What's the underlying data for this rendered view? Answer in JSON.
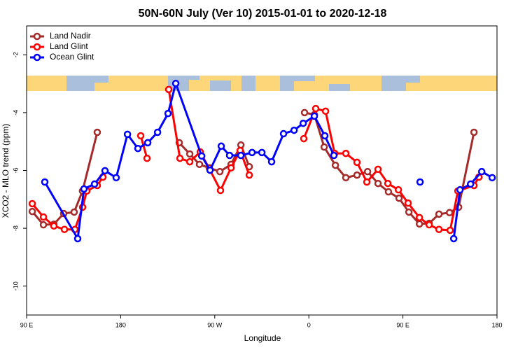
{
  "chart_data": {
    "type": "line",
    "title": "50N-60N July (Ver 10)   2015-01-01 to 2020-12-18",
    "x_label": "Longitude",
    "y_label": "XCO2 - MLO trend (ppm)",
    "xlim": [
      90,
      540
    ],
    "ylim": [
      -11,
      -1
    ],
    "xticks": [
      {
        "value": 90,
        "label": "90 E"
      },
      180,
      {
        "value": 270,
        "label": "90 W"
      },
      {
        "value": 360,
        "label": "0"
      },
      {
        "value": 450,
        "label": "90 E"
      },
      {
        "value": 540,
        "label": "180"
      }
    ],
    "yticks": [
      -10,
      -8,
      -6,
      -4,
      -2
    ],
    "legend": "top-left",
    "series": [
      {
        "name": "Land Nadir",
        "color": "#a52a2a",
        "x": [
          95.4,
          106.1,
          116.1,
          125.5,
          135.5,
          143.5,
          157.6,
          null,
          236.0,
          246.1,
          255.4,
          264.8,
          274.9,
          285.6,
          295.0,
          303.0,
          null,
          355.9,
          365.3,
          374.7,
          385.4,
          395.4,
          406.1,
          416.2,
          426.2,
          436.2,
          446.3,
          455.7,
          465.8,
          475.1,
          484.5,
          494.6,
          503.3,
          518.0
        ],
        "values": [
          -7.42,
          -7.88,
          -7.86,
          -7.49,
          -7.44,
          -6.71,
          -4.68,
          null,
          -5.04,
          -5.43,
          -5.79,
          -5.91,
          -6.04,
          -5.79,
          -5.12,
          -5.87,
          null,
          -4.0,
          -4.07,
          -5.19,
          -5.82,
          -6.25,
          -6.16,
          -6.04,
          -6.45,
          -6.74,
          -6.96,
          -7.44,
          -7.85,
          -7.83,
          -7.51,
          -7.46,
          -7.27,
          -4.68
        ]
      },
      {
        "name": "Land Glint",
        "color": "#ff0000",
        "x": [
          95.4,
          106.1,
          116.1,
          126.2,
          136.2,
          143.6,
          147.6,
          157.6,
          163.0,
          null,
          199.2,
          205.2,
          null,
          226.0,
          236.7,
          246.1,
          256.1,
          265.5,
          275.5,
          285.6,
          294.3,
          303.0,
          null,
          355.2,
          366.6,
          376.0,
          384.7,
          395.4,
          406.1,
          415.5,
          426.2,
          435.6,
          445.7,
          455.0,
          465.8,
          475.1,
          484.5,
          495.2,
          502.6,
          518.0,
          522.7
        ],
        "values": [
          -7.15,
          -7.61,
          -7.92,
          -8.04,
          -8.04,
          -7.27,
          -6.71,
          -6.52,
          -6.23,
          null,
          -4.8,
          -5.58,
          null,
          -3.2,
          -5.58,
          -5.7,
          -5.36,
          -5.99,
          -6.69,
          -5.91,
          -5.31,
          -6.16,
          null,
          -4.9,
          -3.86,
          -3.95,
          -5.41,
          -5.41,
          -5.72,
          -6.4,
          -5.96,
          -6.45,
          -6.67,
          -7.13,
          -7.63,
          -7.88,
          -8.04,
          -8.07,
          -6.71,
          -6.52,
          -6.23
        ]
      },
      {
        "name": "Ocean Glint",
        "color": "#0000ff",
        "x": [
          107.4,
          138.9,
          144.9,
          155.0,
          165.0,
          175.7,
          186.5,
          196.5,
          205.9,
          215.3,
          225.3,
          232.7,
          257.5,
          265.5,
          276.2,
          284.2,
          295.0,
          305.7,
          315.1,
          324.4,
          335.8,
          345.9,
          354.6,
          365.3,
          375.3,
          384.0,
          null,
          466.4,
          null,
          498.6,
          504.6,
          514.7,
          525.4,
          535.4
        ],
        "values": [
          -6.4,
          -8.36,
          -6.64,
          -6.47,
          -6.01,
          -6.25,
          -4.75,
          -5.24,
          -5.04,
          -4.68,
          -4.03,
          -2.99,
          -5.5,
          -5.99,
          -5.16,
          -5.48,
          -5.48,
          -5.38,
          -5.38,
          -5.7,
          -4.73,
          -4.61,
          -4.37,
          -4.12,
          -4.8,
          -5.48,
          null,
          -6.4,
          null,
          -8.36,
          -6.67,
          -6.47,
          -6.04,
          -6.25
        ]
      }
    ]
  }
}
